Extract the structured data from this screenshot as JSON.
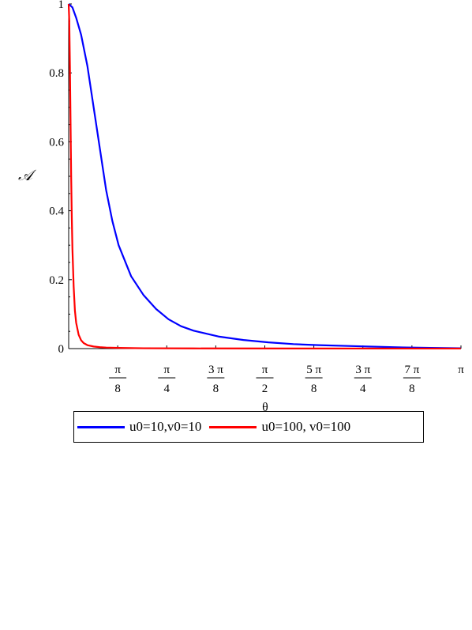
{
  "chart_data": {
    "type": "line",
    "title": "",
    "xlabel": "θ",
    "ylabel": "𝒜",
    "xlim": [
      0,
      3.14159265
    ],
    "ylim": [
      0,
      1
    ],
    "x_ticks": [
      {
        "value": 0.392699,
        "num": "π",
        "den": "8"
      },
      {
        "value": 0.785398,
        "num": "π",
        "den": "4"
      },
      {
        "value": 1.178097,
        "num": "3 π",
        "den": "8"
      },
      {
        "value": 1.570796,
        "num": "π",
        "den": "2"
      },
      {
        "value": 1.963495,
        "num": "5 π",
        "den": "8"
      },
      {
        "value": 2.356194,
        "num": "3 π",
        "den": "4"
      },
      {
        "value": 2.748894,
        "num": "7 π",
        "den": "8"
      },
      {
        "value": 3.141593,
        "num": "π",
        "den": ""
      }
    ],
    "y_ticks": [
      {
        "value": 0,
        "label": "0"
      },
      {
        "value": 0.2,
        "label": "0.2"
      },
      {
        "value": 0.4,
        "label": "0.4"
      },
      {
        "value": 0.6,
        "label": "0.6"
      },
      {
        "value": 0.8,
        "label": "0.8"
      },
      {
        "value": 1,
        "label": "1"
      }
    ],
    "grid": false,
    "legend_position": "bottom",
    "series": [
      {
        "name": "u0=10,v0=10",
        "color": "#0000ff",
        "x": [
          0,
          0.03,
          0.06,
          0.1,
          0.15,
          0.2,
          0.25,
          0.3,
          0.35,
          0.4,
          0.5,
          0.6,
          0.7,
          0.8,
          0.9,
          1.0,
          1.2,
          1.4,
          1.6,
          1.8,
          2.0,
          2.3,
          2.6,
          2.9,
          3.14
        ],
        "y": [
          1.0,
          0.99,
          0.96,
          0.91,
          0.82,
          0.7,
          0.58,
          0.46,
          0.37,
          0.3,
          0.21,
          0.155,
          0.115,
          0.085,
          0.065,
          0.052,
          0.035,
          0.025,
          0.018,
          0.013,
          0.01,
          0.007,
          0.004,
          0.002,
          0.001
        ]
      },
      {
        "name": "u0=100, v0=100",
        "color": "#ff0000",
        "x": [
          0,
          0.005,
          0.01,
          0.015,
          0.02,
          0.025,
          0.03,
          0.04,
          0.05,
          0.06,
          0.08,
          0.1,
          0.12,
          0.15,
          0.2,
          0.25,
          0.3,
          0.4,
          0.6,
          1.0,
          2.0,
          3.14
        ],
        "y": [
          1.0,
          0.95,
          0.82,
          0.66,
          0.5,
          0.38,
          0.29,
          0.18,
          0.11,
          0.075,
          0.04,
          0.024,
          0.016,
          0.01,
          0.006,
          0.004,
          0.003,
          0.002,
          0.001,
          0.0005,
          0.0002,
          0.0001
        ]
      }
    ]
  }
}
